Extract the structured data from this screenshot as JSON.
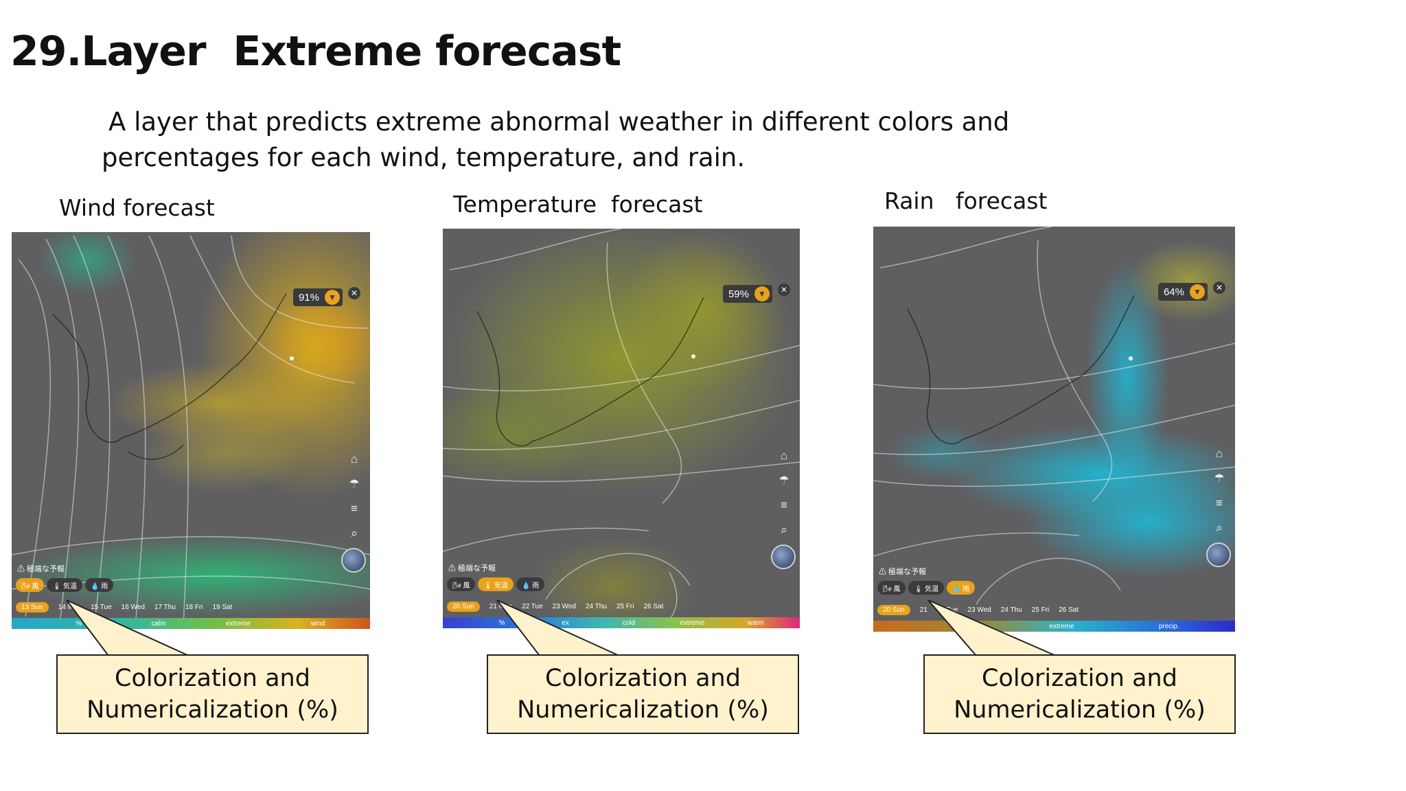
{
  "slide": {
    "title": "29.Layer  Extreme forecast",
    "description_line1": "A layer that predicts extreme abnormal weather in different colors and",
    "description_line2": "percentages for each wind, temperature, and rain."
  },
  "panels": [
    {
      "label": "Wind forecast",
      "percent": "91%",
      "accent": "#e8a21b",
      "warning": "⚠ 極端な予報",
      "layers": [
        {
          "label": "🌬 風",
          "active": true
        },
        {
          "label": "🌡 気温",
          "active": false
        },
        {
          "label": "💧 雨",
          "active": false
        }
      ],
      "days": [
        "13 Sun",
        "14 Mon",
        "15 Tue",
        "16 Wed",
        "17 Thu",
        "18 Fri",
        "19 Sat"
      ],
      "active_day": 0,
      "legend": [
        "%",
        "calm",
        "extreme",
        "wind"
      ],
      "callout_line1": "Colorization and",
      "callout_line2": "Numericalization (%)"
    },
    {
      "label": "Temperature  forecast",
      "percent": "59%",
      "accent": "#e8a21b",
      "warning": "⚠ 極端な予報",
      "layers": [
        {
          "label": "🌬 風",
          "active": false
        },
        {
          "label": "🌡 気温",
          "active": true
        },
        {
          "label": "💧 雨",
          "active": false
        }
      ],
      "days": [
        "20 Sun",
        "21 Mon",
        "22 Tue",
        "23 Wed",
        "24 Thu",
        "25 Fri",
        "26 Sat"
      ],
      "active_day": 0,
      "legend": [
        "%",
        "ex",
        "cold",
        "extreme",
        "warm"
      ],
      "callout_line1": "Colorization and",
      "callout_line2": "Numericalization (%)"
    },
    {
      "label": "Rain   forecast",
      "percent": "64%",
      "accent": "#e8a21b",
      "warning": "⚠ 極端な予報",
      "layers": [
        {
          "label": "🌬 風",
          "active": false
        },
        {
          "label": "🌡 気温",
          "active": false
        },
        {
          "label": "💧 雨",
          "active": true
        }
      ],
      "days": [
        "20 Sun",
        "21",
        "22 Tue",
        "23 Wed",
        "24 Thu",
        "25 Fri",
        "26 Sat"
      ],
      "active_day": 0,
      "legend": [
        "%",
        "extreme",
        "precip."
      ],
      "callout_line1": "Colorization and",
      "callout_line2": "Numericalization (%)"
    }
  ],
  "map_icons": [
    "home-icon",
    "umbrella-icon",
    "menu-icon",
    "search-icon"
  ]
}
